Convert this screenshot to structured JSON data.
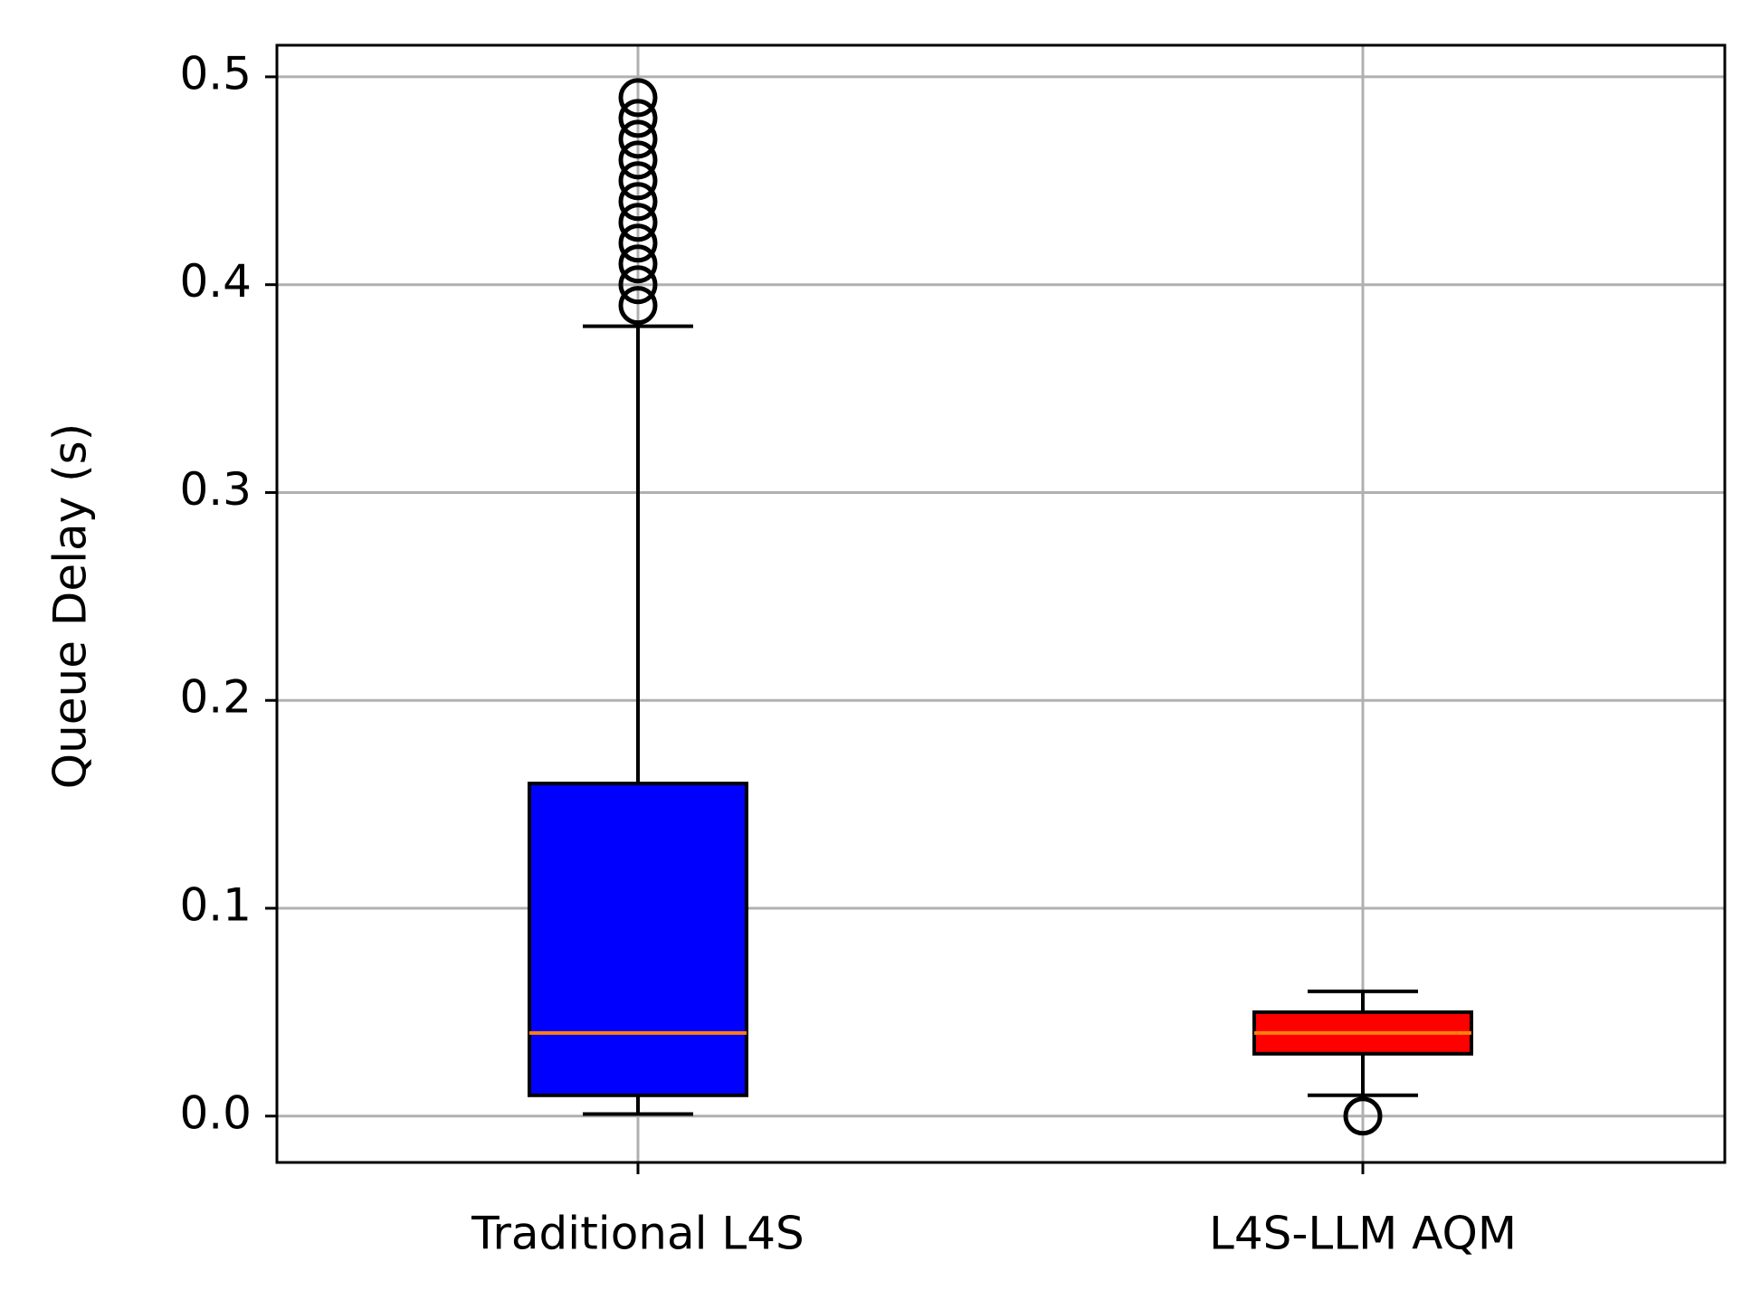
{
  "chart_data": {
    "type": "box",
    "ylabel": "Queue Delay (s)",
    "categories": [
      "Traditional L4S",
      "L4S-LLM AQM"
    ],
    "boxes": [
      {
        "whislo": 0.001,
        "q1": 0.01,
        "med": 0.04,
        "q3": 0.16,
        "whishi": 0.38,
        "fliers": [
          0.39,
          0.4,
          0.41,
          0.42,
          0.43,
          0.44,
          0.45,
          0.46,
          0.47,
          0.48,
          0.49
        ],
        "color": "#0000ff"
      },
      {
        "whislo": 0.01,
        "q1": 0.03,
        "med": 0.04,
        "q3": 0.05,
        "whishi": 0.06,
        "fliers": [
          0.0
        ],
        "color": "#ff0000"
      }
    ],
    "median_color": "#ff7f0e",
    "ylim": [
      -0.0223,
      0.5152
    ],
    "yticks": [
      {
        "value": 0,
        "label": "0.0"
      },
      0.1,
      0.2,
      0.3,
      0.4,
      0.5
    ],
    "grid": true
  }
}
